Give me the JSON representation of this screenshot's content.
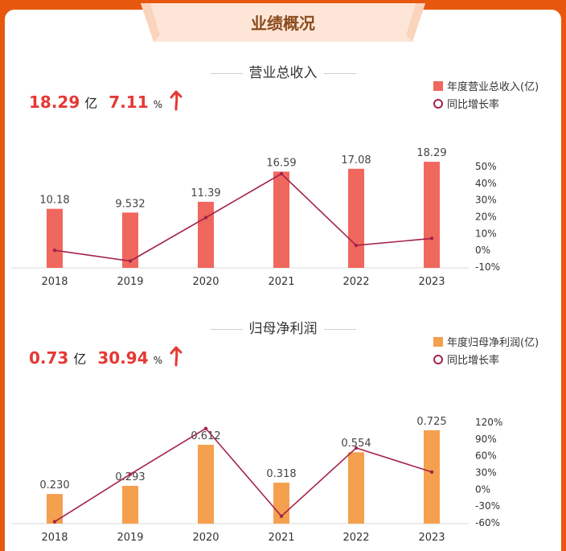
{
  "header": {
    "title": "业绩概况"
  },
  "sections": [
    {
      "title": "营业总收入",
      "summary": {
        "value": "18.29",
        "unit": "亿",
        "growth": "7.11",
        "growth_unit": "%"
      },
      "legend": {
        "bar_label": "年度营业总收入(亿)",
        "line_label": "同比增长率"
      },
      "colors": {
        "bar": "#f0675e",
        "line": "#a3234a"
      }
    },
    {
      "title": "归母净利润",
      "summary": {
        "value": "0.73",
        "unit": "亿",
        "growth": "30.94",
        "growth_unit": "%"
      },
      "legend": {
        "bar_label": "年度归母净利润(亿)",
        "line_label": "同比增长率"
      },
      "colors": {
        "bar": "#f5a04f",
        "line": "#a3234a"
      }
    }
  ],
  "chart_data": [
    {
      "type": "bar",
      "categories": [
        "2018",
        "2019",
        "2020",
        "2021",
        "2022",
        "2023"
      ],
      "series": [
        {
          "name": "年度营业总收入(亿)",
          "type": "bar",
          "values": [
            10.18,
            9.532,
            11.39,
            16.59,
            17.08,
            18.29
          ],
          "labels": [
            "10.18",
            "9.532",
            "11.39",
            "16.59",
            "17.08",
            "18.29"
          ]
        },
        {
          "name": "同比增长率",
          "type": "line",
          "axis": "right",
          "values": [
            0,
            -6.4,
            19.5,
            45.7,
            2.9,
            7.11
          ]
        }
      ],
      "ylim": [
        0,
        19
      ],
      "y2_ticks": [
        "50%",
        "40%",
        "30%",
        "20%",
        "10%",
        "0%",
        "-10%"
      ],
      "y2lim": [
        -10,
        50
      ],
      "legend_position": "top-right"
    },
    {
      "type": "bar",
      "categories": [
        "2018",
        "2019",
        "2020",
        "2021",
        "2022",
        "2023"
      ],
      "series": [
        {
          "name": "年度归母净利润(亿)",
          "type": "bar",
          "values": [
            0.23,
            0.293,
            0.612,
            0.318,
            0.554,
            0.725
          ],
          "labels": [
            "0.230",
            "0.293",
            "0.612",
            "0.318",
            "0.554",
            "0.725"
          ]
        },
        {
          "name": "同比增长率",
          "type": "line",
          "axis": "right",
          "values": [
            -58,
            27,
            109,
            -48,
            74,
            30.94
          ]
        }
      ],
      "ylim": [
        0,
        0.855
      ],
      "y2_ticks": [
        "120%",
        "90%",
        "60%",
        "30%",
        "0%",
        "-30%",
        "-60%"
      ],
      "y2lim": [
        -60,
        120
      ],
      "legend_position": "top-right"
    }
  ]
}
